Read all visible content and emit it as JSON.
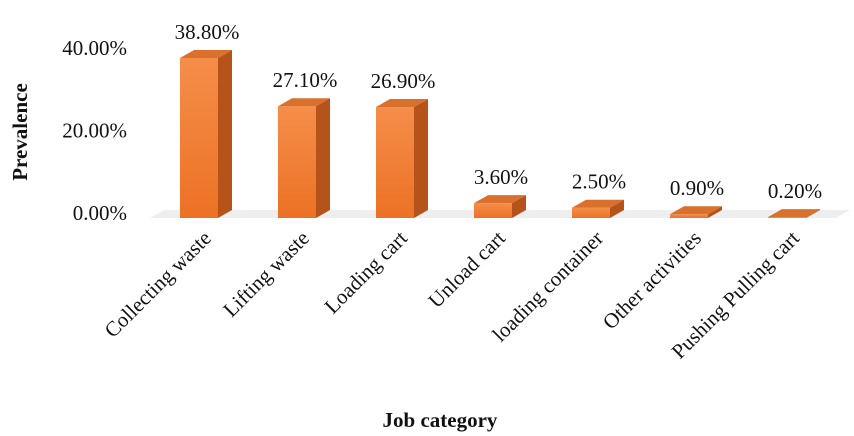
{
  "chart_data": {
    "type": "bar3d",
    "categories": [
      "Collecting waste",
      "Lifting waste",
      "Loading cart",
      "Unload cart",
      "loading container",
      "Other activities",
      "Pushing Pulling cart"
    ],
    "values": [
      38.8,
      27.1,
      26.9,
      3.6,
      2.5,
      0.9,
      0.2
    ],
    "value_labels": [
      "38.80%",
      "27.10%",
      "26.90%",
      "3.60%",
      "2.50%",
      "0.90%",
      "0.20%"
    ],
    "color": "#f07f2f",
    "xlabel": "Job category",
    "ylabel": "Prevalence",
    "ylim": [
      0,
      40
    ],
    "yticks": [
      {
        "value": 0,
        "label": "0.00%"
      },
      {
        "value": 20,
        "label": "20.00%"
      },
      {
        "value": 40,
        "label": "40.00%"
      }
    ],
    "grid": false
  }
}
